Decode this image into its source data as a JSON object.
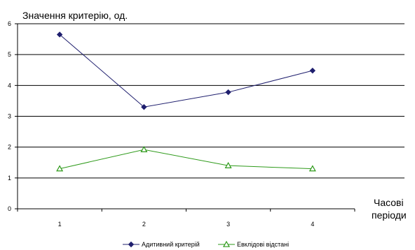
{
  "chart_data": {
    "type": "line",
    "ylabel": "Значення критерію, од.",
    "xlabel_line1": "Часові",
    "xlabel_line2": "періоди",
    "categories": [
      "1",
      "2",
      "3",
      "4"
    ],
    "ylim": [
      0,
      6
    ],
    "yticks": [
      "0",
      "1",
      "2",
      "3",
      "4",
      "5",
      "6"
    ],
    "grid": true,
    "legend_position": "bottom",
    "series": [
      {
        "name": "Адитивний критерій",
        "values": [
          5.65,
          3.3,
          3.78,
          4.48
        ],
        "color": "#1f1f6e",
        "marker": "diamond"
      },
      {
        "name": "Евклідові відстані",
        "values": [
          1.3,
          1.92,
          1.4,
          1.3
        ],
        "color": "#2e9a1a",
        "marker": "triangle"
      }
    ]
  }
}
